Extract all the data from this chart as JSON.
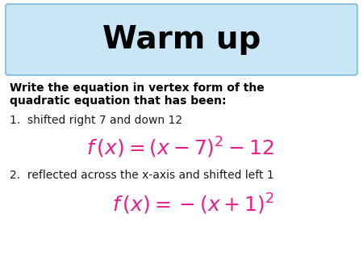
{
  "title": "Warm up",
  "title_bg_color": "#c8e6f5",
  "title_border_color": "#7ab8d8",
  "title_text_color": "#000000",
  "body_bg_color": "#ffffff",
  "instruction_line1": "Write the equation in vertex form of the",
  "instruction_line2": "quadratic equation that has been:",
  "item1_label": "1.  shifted right 7 and down 12",
  "item1_formula": "$f\\,(x) = (x-7)^{2}-12$",
  "item2_label": "2.  reflected across the x-axis and shifted left 1",
  "item2_formula": "$f\\,(x) = -(x+1)^{2}$",
  "formula_color": "#e91e8c",
  "label_color": "#1a1a1a",
  "instruction_color": "#000000",
  "fig_width": 4.5,
  "fig_height": 3.38,
  "dpi": 100
}
